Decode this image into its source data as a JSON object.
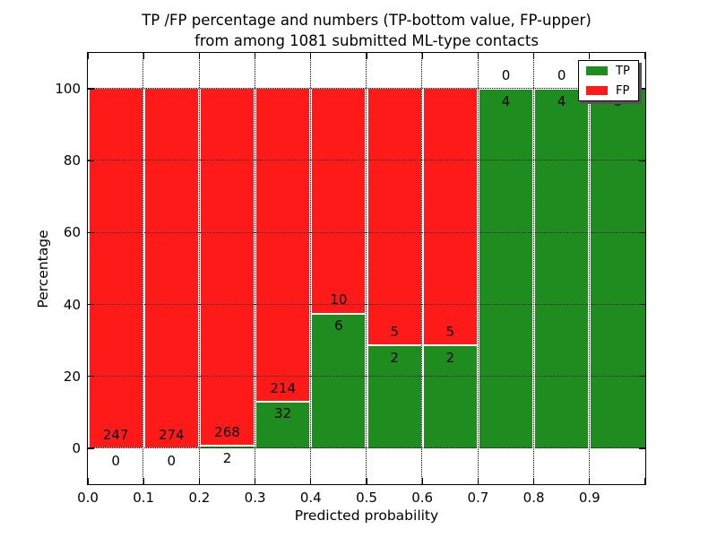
{
  "chart_data": {
    "type": "bar",
    "stacked": true,
    "percent_normalized": true,
    "title_line1": "TP /FP percentage and numbers (TP-bottom value, FP-upper)",
    "title_line2": "from among 1081 submitted ML-type contacts",
    "title": "TP /FP percentage and numbers (TP-bottom value, FP-upper)\nfrom among 1081 submitted ML-type contacts",
    "xlabel": "Predicted probability",
    "ylabel": "Percentage",
    "xlim": [
      0.0,
      1.0
    ],
    "ylim": [
      -10,
      110
    ],
    "bin_width": 0.1,
    "xticks": [
      "0.0",
      "0.1",
      "0.2",
      "0.3",
      "0.4",
      "0.5",
      "0.6",
      "0.7",
      "0.8",
      "0.9"
    ],
    "yticks": [
      "0",
      "20",
      "40",
      "60",
      "80",
      "100"
    ],
    "grid": true,
    "bins": [
      {
        "x_start": 0.0,
        "tp": 0,
        "fp": 247
      },
      {
        "x_start": 0.1,
        "tp": 0,
        "fp": 274
      },
      {
        "x_start": 0.2,
        "tp": 2,
        "fp": 268
      },
      {
        "x_start": 0.3,
        "tp": 32,
        "fp": 214
      },
      {
        "x_start": 0.4,
        "tp": 6,
        "fp": 10
      },
      {
        "x_start": 0.5,
        "tp": 2,
        "fp": 5
      },
      {
        "x_start": 0.6,
        "tp": 2,
        "fp": 5
      },
      {
        "x_start": 0.7,
        "tp": 4,
        "fp": 0
      },
      {
        "x_start": 0.8,
        "tp": 4,
        "fp": 0
      },
      {
        "x_start": 0.9,
        "tp": 6,
        "fp": 0
      }
    ],
    "colors": {
      "tp": "#1e8c1e",
      "fp": "#ff1a1a"
    },
    "legend": {
      "position": "upper right",
      "entries": [
        {
          "label": "TP",
          "color": "#1e8c1e"
        },
        {
          "label": "FP",
          "color": "#ff1a1a"
        }
      ]
    }
  }
}
